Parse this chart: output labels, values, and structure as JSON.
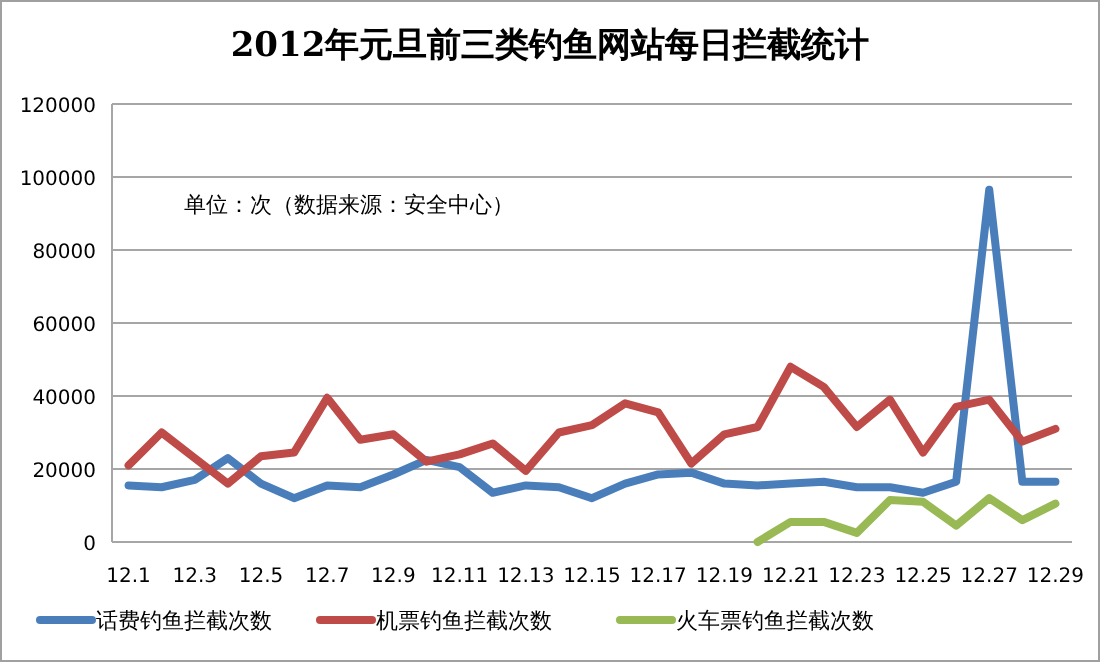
{
  "chart_data": {
    "type": "line",
    "title": "2012年元旦前三类钓鱼网站每日拦截统计",
    "annotations": [
      "单位：次（数据来源：安全中心）"
    ],
    "categories": [
      "12.1",
      null,
      "12.3",
      null,
      "12.5",
      null,
      "12.7",
      null,
      "12.9",
      null,
      "12.11",
      null,
      "12.13",
      null,
      "12.15",
      null,
      "12.17",
      null,
      "12.19",
      null,
      "12.21",
      null,
      "12.23",
      null,
      "12.25",
      null,
      "12.27",
      null,
      "12.29"
    ],
    "series": [
      {
        "name": "话费钓鱼拦截次数",
        "color": "#4a7ebb",
        "values": [
          15500,
          15000,
          17000,
          23000,
          16000,
          12000,
          15500,
          15000,
          18500,
          22500,
          20500,
          13500,
          15500,
          15000,
          12000,
          16000,
          18500,
          19000,
          16000,
          15500,
          16000,
          16500,
          15000,
          15000,
          13500,
          16500,
          96500,
          16500,
          16500
        ]
      },
      {
        "name": "机票钓鱼拦截次数",
        "color": "#be4b48",
        "values": [
          21000,
          30000,
          23000,
          16000,
          23500,
          24500,
          39500,
          28000,
          29500,
          22000,
          24000,
          27000,
          19500,
          30000,
          32000,
          38000,
          35500,
          21500,
          29500,
          31500,
          48000,
          42500,
          31500,
          39000,
          24500,
          37000,
          39000,
          27500,
          31000
        ]
      },
      {
        "name": "火车票钓鱼拦截次数",
        "color": "#98b954",
        "values": [
          null,
          null,
          null,
          null,
          null,
          null,
          null,
          null,
          null,
          null,
          null,
          null,
          null,
          null,
          null,
          null,
          null,
          null,
          null,
          0,
          5500,
          5500,
          2500,
          11500,
          11000,
          4500,
          12000,
          6000,
          10500
        ]
      }
    ],
    "ylim": [
      0,
      120000
    ],
    "yticks": [
      0,
      20000,
      40000,
      60000,
      80000,
      100000,
      120000
    ],
    "grid": "y",
    "legend": "bottom",
    "marker": "none",
    "line_style": "solid"
  }
}
